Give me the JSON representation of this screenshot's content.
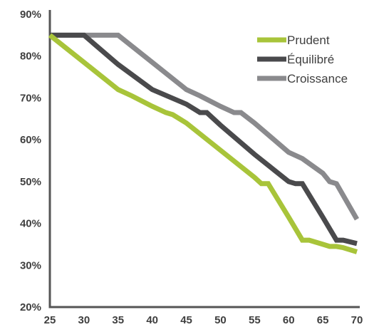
{
  "chart_data": {
    "type": "line",
    "title": "",
    "xlabel": "",
    "ylabel": "",
    "xlim": [
      25,
      70
    ],
    "ylim": [
      20,
      90
    ],
    "x_ticks": [
      25,
      30,
      35,
      40,
      45,
      50,
      55,
      60,
      65,
      70
    ],
    "y_ticks": [
      20,
      30,
      40,
      50,
      60,
      70,
      80,
      90
    ],
    "y_tick_labels": [
      "20%",
      "30%",
      "40%",
      "50%",
      "60%",
      "70%",
      "80%",
      "90%"
    ],
    "grid": false,
    "legend_position": "top-right",
    "series": [
      {
        "name": "Prudent",
        "color": "#a8c43a",
        "points": [
          [
            25,
            85
          ],
          [
            30,
            78.5
          ],
          [
            35,
            72
          ],
          [
            37,
            70.5
          ],
          [
            40,
            68
          ],
          [
            42,
            66.5
          ],
          [
            43,
            66
          ],
          [
            45,
            64
          ],
          [
            50,
            57.5
          ],
          [
            55,
            51
          ],
          [
            56,
            49.5
          ],
          [
            57,
            49.5
          ],
          [
            60,
            41.5
          ],
          [
            62,
            36
          ],
          [
            63,
            36
          ],
          [
            65,
            35
          ],
          [
            66,
            34.5
          ],
          [
            67,
            34.5
          ],
          [
            68,
            34.2
          ],
          [
            70,
            33.2
          ]
        ]
      },
      {
        "name": "Équilibré",
        "color": "#4a4a4c",
        "points": [
          [
            25,
            85
          ],
          [
            30,
            85
          ],
          [
            35,
            78
          ],
          [
            40,
            72
          ],
          [
            45,
            68.5
          ],
          [
            47,
            66.5
          ],
          [
            48,
            66.5
          ],
          [
            50,
            63.5
          ],
          [
            55,
            56.5
          ],
          [
            60,
            50
          ],
          [
            61,
            49.5
          ],
          [
            62,
            49.5
          ],
          [
            65,
            41.5
          ],
          [
            67,
            36
          ],
          [
            68,
            36
          ],
          [
            70,
            35.2
          ]
        ]
      },
      {
        "name": "Croissance",
        "color": "#8a8a8d",
        "points": [
          [
            25,
            85
          ],
          [
            35,
            85
          ],
          [
            40,
            78.5
          ],
          [
            45,
            72
          ],
          [
            47,
            70.5
          ],
          [
            50,
            68
          ],
          [
            52,
            66.5
          ],
          [
            53,
            66.5
          ],
          [
            55,
            64
          ],
          [
            60,
            57
          ],
          [
            62,
            55.5
          ],
          [
            65,
            52
          ],
          [
            66,
            50
          ],
          [
            67,
            49.5
          ],
          [
            70,
            41
          ]
        ]
      }
    ]
  }
}
